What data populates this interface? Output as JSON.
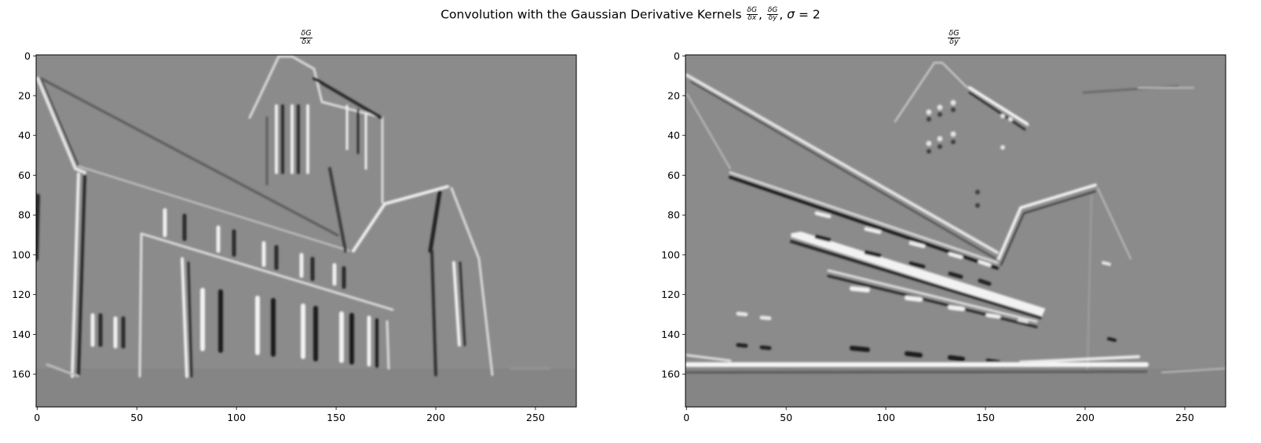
{
  "figure": {
    "suptitle_prefix": "Convolution with the Gaussian Derivative Kernels ",
    "suptitle_sep": ", ",
    "suptitle_sigma": "σ",
    "suptitle_eq": " = 2"
  },
  "chart_data": [
    {
      "type": "heatmap",
      "title": {
        "num": "δG",
        "den": "δx"
      },
      "xticks": [
        0,
        50,
        100,
        150,
        200,
        250
      ],
      "yticks": [
        0,
        20,
        40,
        60,
        80,
        100,
        120,
        140,
        160
      ],
      "xlim": [
        -0.5,
        270.5
      ],
      "ylim": [
        176.5,
        -0.5
      ],
      "colormap": "gray",
      "grid": false,
      "description_values": "Horizontal-gradient response of a grayscale church image"
    },
    {
      "type": "heatmap",
      "title": {
        "num": "δG",
        "den": "δy"
      },
      "xticks": [
        0,
        50,
        100,
        150,
        200,
        250
      ],
      "yticks": [
        0,
        20,
        40,
        60,
        80,
        100,
        120,
        140,
        160
      ],
      "xlim": [
        -0.5,
        270.5
      ],
      "ylim": [
        176.5,
        -0.5
      ],
      "colormap": "gray",
      "grid": false,
      "description_values": "Vertical-gradient response of a grayscale church image"
    }
  ],
  "colors": {
    "background": "#8a8a8a",
    "bright": "#ececec",
    "dark": "#2a2a2a"
  }
}
